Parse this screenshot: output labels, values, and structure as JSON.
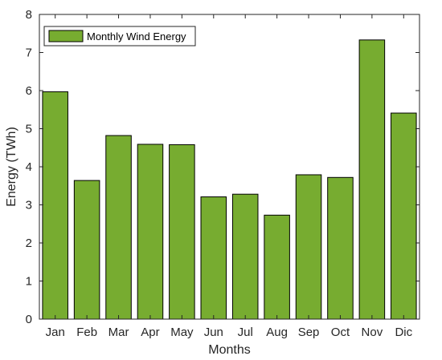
{
  "chart_data": {
    "type": "bar",
    "title": "",
    "xlabel": "Months",
    "ylabel": "Energy (TWh)",
    "categories": [
      "Jan",
      "Feb",
      "Mar",
      "Apr",
      "May",
      "Jun",
      "Jul",
      "Aug",
      "Sep",
      "Oct",
      "Nov",
      "Dic"
    ],
    "series": [
      {
        "name": "Monthly Wind Energy",
        "values": [
          5.97,
          3.64,
          4.82,
          4.59,
          4.58,
          3.21,
          3.28,
          2.73,
          3.79,
          3.72,
          7.33,
          5.41
        ],
        "color": "#77AC30"
      }
    ],
    "ylim": [
      0,
      8
    ],
    "yticks": [
      0,
      1,
      2,
      3,
      4,
      5,
      6,
      7,
      8
    ],
    "grid": false,
    "legend_position": "top-left"
  }
}
